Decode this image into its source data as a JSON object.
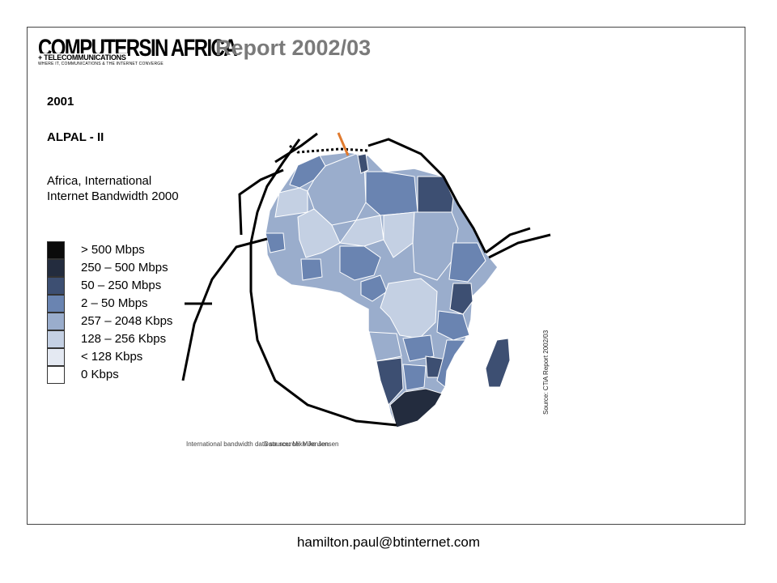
{
  "header": {
    "logo_main": "COMPUTERSIN AFRICA",
    "logo_sub": "+ TELECOMMUNICATIONS",
    "logo_tagline": "WHERE IT, COMMUNICATIONS & THE INTERNET CONVERGE",
    "report_title": "Report 2002/03"
  },
  "slide": {
    "year": "2001",
    "system": "ALPAL - II",
    "legend_title": "Africa, International Internet Bandwidth 2000"
  },
  "legend": {
    "items": [
      {
        "label": "> 500 Mbps",
        "color": "#0b0b0b"
      },
      {
        "label": "250 – 500 Mbps",
        "color": "#232c3e"
      },
      {
        "label": "50 – 250 Mbps",
        "color": "#3d4f72"
      },
      {
        "label": "2 – 50 Mbps",
        "color": "#6a84b1"
      },
      {
        "label": "257 – 2048 Kbps",
        "color": "#9aadcc"
      },
      {
        "label": "128 – 256 Kbps",
        "color": "#c4d0e3"
      },
      {
        "label": "< 128 Kbps",
        "color": "#e4e9f2"
      },
      {
        "label": "0 Kbps",
        "color": "#ffffff"
      }
    ]
  },
  "map": {
    "caption_1": "International bandwidth data source: Mike Jensen",
    "caption_2": "Date source: Mike Jensen",
    "source": "Source: CTiA Report 2002/03",
    "cable_color": "#000000",
    "highlight_cable_color": "#e07a2e"
  },
  "footer": {
    "email": "hamilton.paul@btinternet.com"
  }
}
